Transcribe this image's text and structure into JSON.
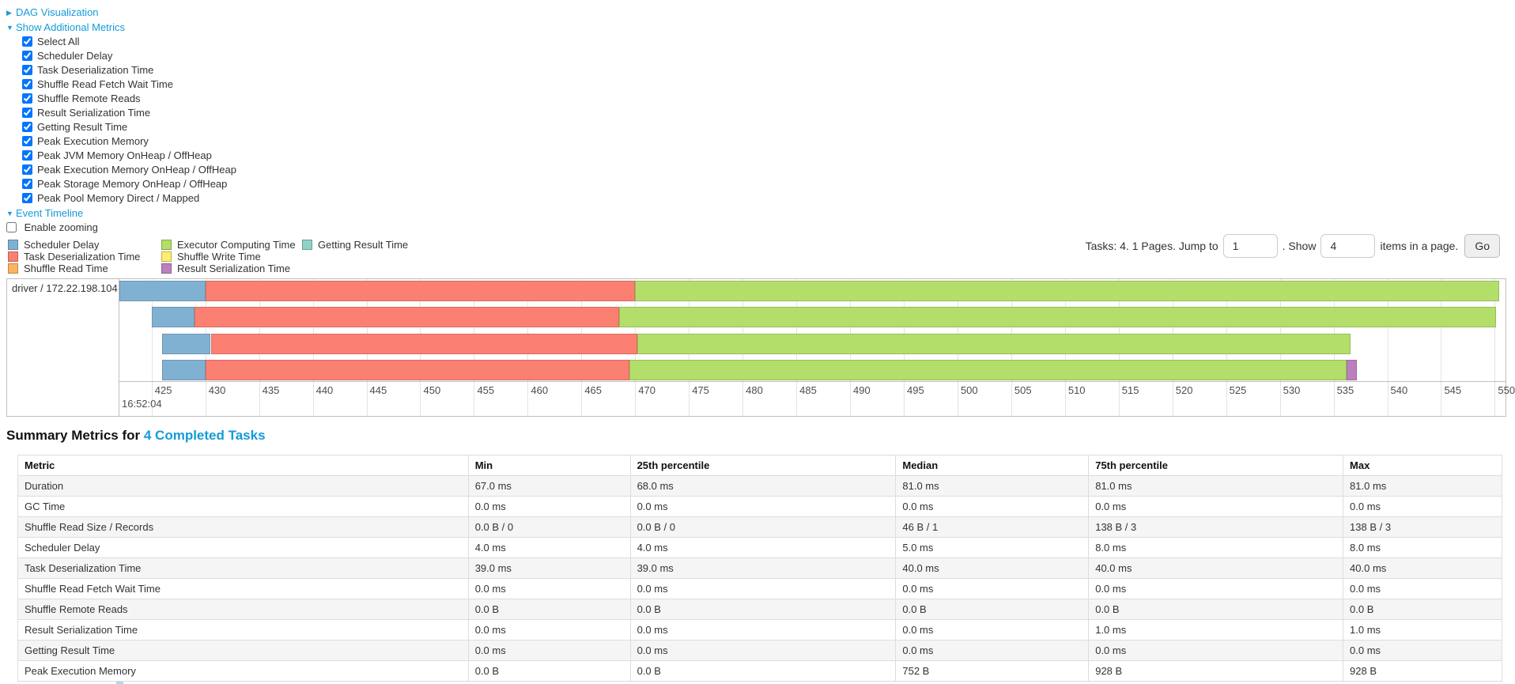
{
  "expanders": {
    "dag": {
      "label": "DAG Visualization",
      "arrow": "collapsed"
    },
    "additional_metrics": {
      "label": "Show Additional Metrics",
      "arrow": "expanded"
    },
    "event_timeline": {
      "label": "Event Timeline",
      "arrow": "expanded"
    }
  },
  "metric_checkboxes": [
    {
      "label": "Select All",
      "checked": true
    },
    {
      "label": "Scheduler Delay",
      "checked": true
    },
    {
      "label": "Task Deserialization Time",
      "checked": true
    },
    {
      "label": "Shuffle Read Fetch Wait Time",
      "checked": true
    },
    {
      "label": "Shuffle Remote Reads",
      "checked": true
    },
    {
      "label": "Result Serialization Time",
      "checked": true
    },
    {
      "label": "Getting Result Time",
      "checked": true
    },
    {
      "label": "Peak Execution Memory",
      "checked": true
    },
    {
      "label": "Peak JVM Memory OnHeap / OffHeap",
      "checked": true
    },
    {
      "label": "Peak Execution Memory OnHeap / OffHeap",
      "checked": true
    },
    {
      "label": "Peak Storage Memory OnHeap / OffHeap",
      "checked": true
    },
    {
      "label": "Peak Pool Memory Direct / Mapped",
      "checked": true
    }
  ],
  "enable_zooming": {
    "label": "Enable zooming",
    "checked": false
  },
  "legend_columns": [
    [
      {
        "label": "Scheduler Delay",
        "color": "#80B1D3"
      },
      {
        "label": "Task Deserialization Time",
        "color": "#FB8072"
      },
      {
        "label": "Shuffle Read Time",
        "color": "#FDB462"
      }
    ],
    [
      {
        "label": "Executor Computing Time",
        "color": "#B3DE69"
      },
      {
        "label": "Shuffle Write Time",
        "color": "#FFED6F"
      },
      {
        "label": "Result Serialization Time",
        "color": "#BC80BD"
      }
    ],
    [
      {
        "label": "Getting Result Time",
        "color": "#8DD3C7"
      }
    ]
  ],
  "pagination": {
    "tasks_text": "Tasks: 4. 1 Pages. Jump to",
    "jump_value": "1",
    "show_label": ". Show",
    "show_value": "4",
    "items_label": "items in a page.",
    "go_label": "Go"
  },
  "chart_data": {
    "type": "timeline",
    "group_label": "driver / 172.22.198.104",
    "x_unit": "milliseconds within second 16:52:04",
    "x_domain": [
      422.0,
      551.0
    ],
    "ticks": [
      425,
      430,
      435,
      440,
      445,
      450,
      455,
      460,
      465,
      470,
      475,
      480,
      485,
      490,
      495,
      500,
      505,
      510,
      515,
      520,
      525,
      530,
      535,
      540,
      545,
      550
    ],
    "major_tick_label": "16:52:04",
    "series_colors": {
      "Scheduler Delay": "#80B1D3",
      "Task Deserialization Time": "#FB8072",
      "Shuffle Read Time": "#FDB462",
      "Executor Computing Time": "#B3DE69",
      "Shuffle Write Time": "#FFED6F",
      "Result Serialization Time": "#BC80BD",
      "Getting Result Time": "#8DD3C7"
    },
    "tasks": [
      {
        "segments": [
          {
            "name": "Scheduler Delay",
            "start": 422.0,
            "end": 430.0
          },
          {
            "name": "Task Deserialization Time",
            "start": 430.0,
            "end": 470.0
          },
          {
            "name": "Executor Computing Time",
            "start": 470.0,
            "end": 550.4
          }
        ]
      },
      {
        "segments": [
          {
            "name": "Scheduler Delay",
            "start": 425.0,
            "end": 429.0
          },
          {
            "name": "Task Deserialization Time",
            "start": 429.0,
            "end": 468.5
          },
          {
            "name": "Executor Computing Time",
            "start": 468.5,
            "end": 550.1
          }
        ]
      },
      {
        "segments": [
          {
            "name": "Scheduler Delay",
            "start": 426.0,
            "end": 430.5
          },
          {
            "name": "Task Deserialization Time",
            "start": 430.5,
            "end": 470.2
          },
          {
            "name": "Executor Computing Time",
            "start": 470.2,
            "end": 536.6
          }
        ]
      },
      {
        "segments": [
          {
            "name": "Scheduler Delay",
            "start": 426.0,
            "end": 430.0
          },
          {
            "name": "Task Deserialization Time",
            "start": 430.0,
            "end": 469.5
          },
          {
            "name": "Executor Computing Time",
            "start": 469.5,
            "end": 536.2
          },
          {
            "name": "Result Serialization Time",
            "start": 536.2,
            "end": 537.2
          }
        ]
      }
    ]
  },
  "summary": {
    "title_prefix": "Summary Metrics for",
    "title_link": "4 Completed Tasks",
    "columns": [
      "Metric",
      "Min",
      "25th percentile",
      "Median",
      "75th percentile",
      "Max"
    ],
    "rows": [
      {
        "metric": "Duration",
        "values": [
          "67.0 ms",
          "68.0 ms",
          "81.0 ms",
          "81.0 ms",
          "81.0 ms"
        ]
      },
      {
        "metric": "GC Time",
        "values": [
          "0.0 ms",
          "0.0 ms",
          "0.0 ms",
          "0.0 ms",
          "0.0 ms"
        ]
      },
      {
        "metric": "Shuffle Read Size / Records",
        "values": [
          "0.0 B / 0",
          "0.0 B / 0",
          "46 B / 1",
          "138 B / 3",
          "138 B / 3"
        ]
      },
      {
        "metric": "Scheduler Delay",
        "values": [
          "4.0 ms",
          "4.0 ms",
          "5.0 ms",
          "8.0 ms",
          "8.0 ms"
        ]
      },
      {
        "metric": "Task Deserialization Time",
        "values": [
          "39.0 ms",
          "39.0 ms",
          "40.0 ms",
          "40.0 ms",
          "40.0 ms"
        ]
      },
      {
        "metric": "Shuffle Read Fetch Wait Time",
        "values": [
          "0.0 ms",
          "0.0 ms",
          "0.0 ms",
          "0.0 ms",
          "0.0 ms"
        ]
      },
      {
        "metric": "Shuffle Remote Reads",
        "values": [
          "0.0 B",
          "0.0 B",
          "0.0 B",
          "0.0 B",
          "0.0 B"
        ]
      },
      {
        "metric": "Result Serialization Time",
        "values": [
          "0.0 ms",
          "0.0 ms",
          "0.0 ms",
          "1.0 ms",
          "1.0 ms"
        ]
      },
      {
        "metric": "Getting Result Time",
        "values": [
          "0.0 ms",
          "0.0 ms",
          "0.0 ms",
          "0.0 ms",
          "0.0 ms"
        ]
      },
      {
        "metric": "Peak Execution Memory",
        "values": [
          "0.0 B",
          "0.0 B",
          "752 B",
          "928 B",
          "928 B"
        ]
      }
    ]
  },
  "colors": {
    "link_blue": "#149bd8",
    "grid_line": "#e3e3e3",
    "chart_border": "#bfbfbf",
    "table_stripe": "#f5f5f5"
  }
}
